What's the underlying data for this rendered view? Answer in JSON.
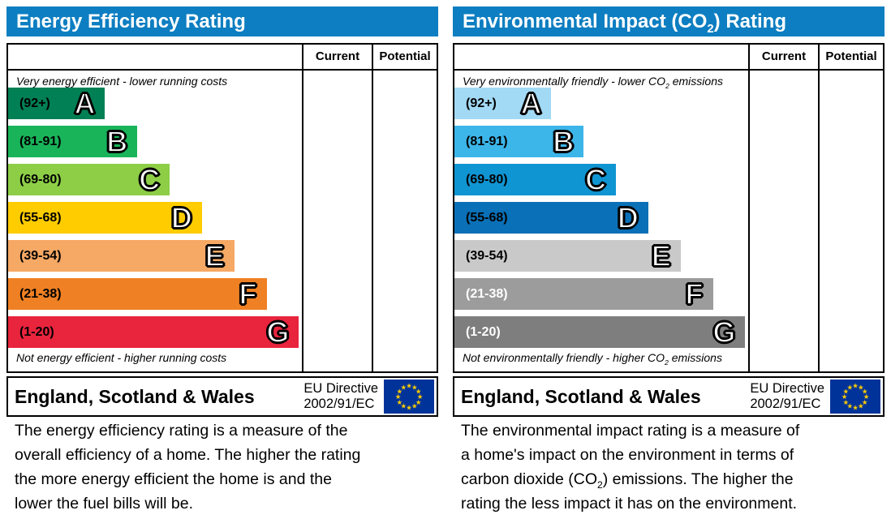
{
  "colors": {
    "title_bar": "#0d7ec1",
    "border": "#000000",
    "eu_flag_blue": "#003399",
    "eu_star_yellow": "#ffcc00"
  },
  "panels": {
    "left": {
      "title": {
        "pre": "Energy Efficiency Rating",
        "sub": "",
        "post": ""
      },
      "header": {
        "current": "Current",
        "potential": "Potential"
      },
      "top_caption": {
        "pre": "Very energy efficient - lower running costs",
        "sub": "",
        "post": ""
      },
      "bottom_caption": {
        "pre": "Not energy efficient - higher running costs",
        "sub": "",
        "post": ""
      },
      "bands": [
        {
          "range": "(92+)",
          "letter": "A",
          "color": "#008054",
          "width_pct": 33,
          "label_color": "#000000"
        },
        {
          "range": "(81-91)",
          "letter": "B",
          "color": "#19b459",
          "width_pct": 44,
          "label_color": "#000000"
        },
        {
          "range": "(69-80)",
          "letter": "C",
          "color": "#8dce46",
          "width_pct": 55,
          "label_color": "#000000"
        },
        {
          "range": "(55-68)",
          "letter": "D",
          "color": "#ffcc00",
          "width_pct": 66,
          "label_color": "#000000"
        },
        {
          "range": "(39-54)",
          "letter": "E",
          "color": "#f6a865",
          "width_pct": 77,
          "label_color": "#000000"
        },
        {
          "range": "(21-38)",
          "letter": "F",
          "color": "#ef8023",
          "width_pct": 88,
          "label_color": "#000000"
        },
        {
          "range": "(1-20)",
          "letter": "G",
          "color": "#e9243d",
          "width_pct": 99,
          "label_color": "#000000"
        }
      ],
      "footer": {
        "region": "England, Scotland & Wales",
        "directive_line1": "EU Directive",
        "directive_line2": "2002/91/EC"
      },
      "description_lines": [
        {
          "pre": "The energy efficiency rating is a measure of the",
          "sub": "",
          "post": ""
        },
        {
          "pre": "overall efficiency of a home. The higher the rating",
          "sub": "",
          "post": ""
        },
        {
          "pre": "the more energy efficient the home is and the",
          "sub": "",
          "post": ""
        },
        {
          "pre": "lower the fuel bills will be.",
          "sub": "",
          "post": ""
        }
      ]
    },
    "right": {
      "title": {
        "pre": "Environmental Impact (CO",
        "sub": "2",
        "post": ") Rating"
      },
      "header": {
        "current": "Current",
        "potential": "Potential"
      },
      "top_caption": {
        "pre": "Very environmentally friendly - lower CO",
        "sub": "2",
        "post": " emissions"
      },
      "bottom_caption": {
        "pre": "Not environmentally friendly - higher CO",
        "sub": "2",
        "post": " emissions"
      },
      "bands": [
        {
          "range": "(92+)",
          "letter": "A",
          "color": "#a2d9f4",
          "width_pct": 33,
          "label_color": "#000000"
        },
        {
          "range": "(81-91)",
          "letter": "B",
          "color": "#3cb5e9",
          "width_pct": 44,
          "label_color": "#000000"
        },
        {
          "range": "(69-80)",
          "letter": "C",
          "color": "#1095d3",
          "width_pct": 55,
          "label_color": "#000000"
        },
        {
          "range": "(55-68)",
          "letter": "D",
          "color": "#0a70b7",
          "width_pct": 66,
          "label_color": "#000000"
        },
        {
          "range": "(39-54)",
          "letter": "E",
          "color": "#c9c9c9",
          "width_pct": 77,
          "label_color": "#000000"
        },
        {
          "range": "(21-38)",
          "letter": "F",
          "color": "#9c9c9c",
          "width_pct": 88,
          "label_color": "#ffffff"
        },
        {
          "range": "(1-20)",
          "letter": "G",
          "color": "#7e7e7e",
          "width_pct": 99,
          "label_color": "#ffffff"
        }
      ],
      "footer": {
        "region": "England, Scotland & Wales",
        "directive_line1": "EU Directive",
        "directive_line2": "2002/91/EC"
      },
      "description_lines": [
        {
          "pre": "The environmental impact rating is a measure of",
          "sub": "",
          "post": ""
        },
        {
          "pre": "a home's impact on the environment in terms of",
          "sub": "",
          "post": ""
        },
        {
          "pre": "carbon dioxide (CO",
          "sub": "2",
          "post": ") emissions. The higher the"
        },
        {
          "pre": "rating the less impact it has on the environment.",
          "sub": "",
          "post": ""
        }
      ]
    }
  },
  "chart_data": [
    {
      "type": "bar",
      "title": "Energy Efficiency Rating",
      "orientation": "horizontal",
      "categories": [
        "A",
        "B",
        "C",
        "D",
        "E",
        "F",
        "G"
      ],
      "band_ranges": [
        "92+",
        "81-91",
        "69-80",
        "55-68",
        "39-54",
        "21-38",
        "1-20"
      ],
      "bar_length_pct": [
        33,
        44,
        55,
        66,
        77,
        88,
        99
      ],
      "bar_colors": [
        "#008054",
        "#19b459",
        "#8dce46",
        "#ffcc00",
        "#f6a865",
        "#ef8023",
        "#e9243d"
      ],
      "columns": [
        "Current",
        "Potential"
      ],
      "current_value": null,
      "potential_value": null,
      "top_label": "Very energy efficient - lower running costs",
      "bottom_label": "Not energy efficient - higher running costs",
      "footer": "England, Scotland & Wales — EU Directive 2002/91/EC"
    },
    {
      "type": "bar",
      "title": "Environmental Impact (CO₂) Rating",
      "orientation": "horizontal",
      "categories": [
        "A",
        "B",
        "C",
        "D",
        "E",
        "F",
        "G"
      ],
      "band_ranges": [
        "92+",
        "81-91",
        "69-80",
        "55-68",
        "39-54",
        "21-38",
        "1-20"
      ],
      "bar_length_pct": [
        33,
        44,
        55,
        66,
        77,
        88,
        99
      ],
      "bar_colors": [
        "#a2d9f4",
        "#3cb5e9",
        "#1095d3",
        "#0a70b7",
        "#c9c9c9",
        "#9c9c9c",
        "#7e7e7e"
      ],
      "columns": [
        "Current",
        "Potential"
      ],
      "current_value": null,
      "potential_value": null,
      "top_label": "Very environmentally friendly - lower CO₂ emissions",
      "bottom_label": "Not environmentally friendly - higher CO₂ emissions",
      "footer": "England, Scotland & Wales — EU Directive 2002/91/EC"
    }
  ]
}
